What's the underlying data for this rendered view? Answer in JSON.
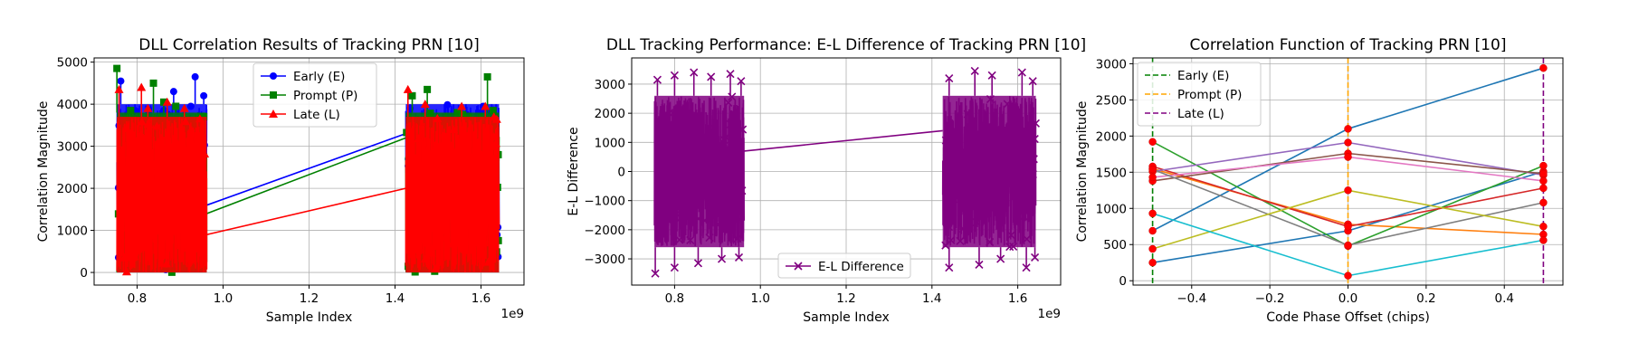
{
  "chart_data": [
    {
      "type": "line",
      "title": "DLL Correlation Results of Tracking PRN [10]",
      "xlabel": "Sample Index",
      "ylabel": "Correlation Magnitude",
      "x_offset_text": "1e9",
      "xlim": [
        0.7,
        1.7
      ],
      "ylim": [
        -300,
        5100
      ],
      "x_ticks": [
        0.8,
        1.0,
        1.2,
        1.4,
        1.6
      ],
      "x_tick_labels": [
        "0.8",
        "1.0",
        "1.2",
        "1.4",
        "1.6"
      ],
      "y_ticks": [
        0,
        1000,
        2000,
        3000,
        4000,
        5000
      ],
      "grid": true,
      "legend_position": "top-center",
      "x_scale_note": "x values in units of 1e9 samples",
      "segments": [
        [
          0.753,
          0.962
        ],
        [
          1.425,
          1.642
        ]
      ],
      "series": [
        {
          "name": "Early (E)",
          "color": "#0000ff",
          "marker": "circle",
          "band": [
            0,
            4000
          ],
          "peaks": [
            [
              0.762,
              4550
            ],
            [
              0.795,
              3850
            ],
            [
              0.862,
              3850
            ],
            [
              0.885,
              4300
            ],
            [
              0.925,
              3950
            ],
            [
              0.935,
              4650
            ],
            [
              0.955,
              4200
            ],
            [
              1.435,
              3900
            ],
            [
              1.515,
              3500
            ],
            [
              1.565,
              3400
            ],
            [
              1.605,
              3950
            ],
            [
              1.625,
              3500
            ],
            [
              1.635,
              2900
            ]
          ],
          "bridge": [
            [
              0.962,
              1600
            ],
            [
              1.425,
              3300
            ]
          ]
        },
        {
          "name": "Prompt (P)",
          "color": "#008000",
          "marker": "square",
          "band": [
            0,
            3800
          ],
          "peaks": [
            [
              0.753,
              4850
            ],
            [
              0.785,
              3850
            ],
            [
              0.838,
              4500
            ],
            [
              0.862,
              4050
            ],
            [
              0.89,
              3950
            ],
            [
              0.955,
              3700
            ],
            [
              1.44,
              4200
            ],
            [
              1.475,
              4350
            ],
            [
              1.545,
              3800
            ],
            [
              1.615,
              4650
            ],
            [
              1.628,
              3850
            ],
            [
              1.64,
              2800
            ]
          ],
          "bridge": [
            [
              0.962,
              1400
            ],
            [
              1.425,
              3200
            ]
          ]
        },
        {
          "name": "Late (L)",
          "color": "#ff0000",
          "marker": "triangle",
          "band": [
            0,
            3700
          ],
          "peaks": [
            [
              0.758,
              4350
            ],
            [
              0.81,
              4400
            ],
            [
              0.825,
              3900
            ],
            [
              0.87,
              4050
            ],
            [
              0.91,
              3900
            ],
            [
              1.43,
              4350
            ],
            [
              1.47,
              4000
            ],
            [
              1.555,
              3950
            ],
            [
              1.61,
              3950
            ],
            [
              1.63,
              3700
            ]
          ],
          "bridge": [
            [
              0.962,
              900
            ],
            [
              1.425,
              2000
            ]
          ]
        }
      ]
    },
    {
      "type": "line",
      "title": "DLL Tracking Performance: E-L Difference of Tracking PRN [10]",
      "xlabel": "Sample Index",
      "ylabel": "E-L Difference",
      "x_offset_text": "1e9",
      "xlim": [
        0.7,
        1.7
      ],
      "ylim": [
        -3900,
        3900
      ],
      "x_ticks": [
        0.8,
        1.0,
        1.2,
        1.4,
        1.6
      ],
      "x_tick_labels": [
        "0.8",
        "1.0",
        "1.2",
        "1.4",
        "1.6"
      ],
      "y_ticks": [
        -3000,
        -2000,
        -1000,
        0,
        1000,
        2000,
        3000
      ],
      "y_tick_labels": [
        "−3000",
        "−2000",
        "−1000",
        "0",
        "1000",
        "2000",
        "3000"
      ],
      "grid": true,
      "legend_position": "bottom-center",
      "x_scale_note": "x values in units of 1e9 samples",
      "segments": [
        [
          0.753,
          0.962
        ],
        [
          1.425,
          1.642
        ]
      ],
      "series": [
        {
          "name": "E-L Difference",
          "color": "#800080",
          "marker": "x",
          "band": [
            -2600,
            2600
          ],
          "peaks": [
            [
              0.76,
              3150
            ],
            [
              0.8,
              3300
            ],
            [
              0.845,
              3400
            ],
            [
              0.885,
              3250
            ],
            [
              0.93,
              3350
            ],
            [
              0.955,
              3100
            ],
            [
              1.44,
              3200
            ],
            [
              1.5,
              3450
            ],
            [
              1.54,
              3300
            ],
            [
              1.61,
              3400
            ],
            [
              1.635,
              3100
            ]
          ],
          "troughs": [
            [
              0.755,
              -3500
            ],
            [
              0.8,
              -3300
            ],
            [
              0.855,
              -3150
            ],
            [
              0.91,
              -3000
            ],
            [
              0.95,
              -2950
            ],
            [
              1.44,
              -3300
            ],
            [
              1.51,
              -3200
            ],
            [
              1.56,
              -3000
            ],
            [
              1.62,
              -3300
            ],
            [
              1.64,
              -2950
            ]
          ],
          "bridge": [
            [
              0.962,
              700
            ],
            [
              1.425,
              1400
            ]
          ]
        }
      ]
    },
    {
      "type": "line",
      "title": "Correlation Function of Tracking PRN [10]",
      "xlabel": "Code Phase Offset (chips)",
      "ylabel": "Correlation Magnitude",
      "xlim": [
        -0.55,
        0.55
      ],
      "ylim": [
        -60,
        3080
      ],
      "x_ticks": [
        -0.4,
        -0.2,
        0.0,
        0.2,
        0.4
      ],
      "x_tick_labels": [
        "−0.4",
        "−0.2",
        "0.0",
        "0.2",
        "0.4"
      ],
      "y_ticks": [
        0,
        500,
        1000,
        1500,
        2000,
        2500,
        3000
      ],
      "grid": true,
      "legend_position": "top-left",
      "markers": [
        {
          "name": "Early (E)",
          "x": -0.5,
          "color": "#008000"
        },
        {
          "name": "Prompt (P)",
          "x": 0.0,
          "color": "#ffa500"
        },
        {
          "name": "Late (L)",
          "x": 0.5,
          "color": "#800080"
        }
      ],
      "x": [
        -0.5,
        0.0,
        0.5
      ],
      "lines": [
        {
          "color": "#1f77b4",
          "values": [
            690,
            2100,
            2940
          ]
        },
        {
          "color": "#1f77b4",
          "values": [
            250,
            690,
            1510
          ]
        },
        {
          "color": "#ff7f0e",
          "values": [
            1550,
            780,
            640
          ]
        },
        {
          "color": "#2ca02c",
          "values": [
            1920,
            480,
            1590
          ]
        },
        {
          "color": "#d62728",
          "values": [
            1580,
            750,
            1280
          ]
        },
        {
          "color": "#9467bd",
          "values": [
            1510,
            1910,
            1460
          ]
        },
        {
          "color": "#8c564b",
          "values": [
            1380,
            1760,
            1480
          ]
        },
        {
          "color": "#e377c2",
          "values": [
            1430,
            1710,
            1380
          ]
        },
        {
          "color": "#7f7f7f",
          "values": [
            1540,
            490,
            1080
          ]
        },
        {
          "color": "#bcbd22",
          "values": [
            440,
            1250,
            750
          ]
        },
        {
          "color": "#17becf",
          "values": [
            930,
            70,
            560
          ]
        }
      ]
    }
  ]
}
